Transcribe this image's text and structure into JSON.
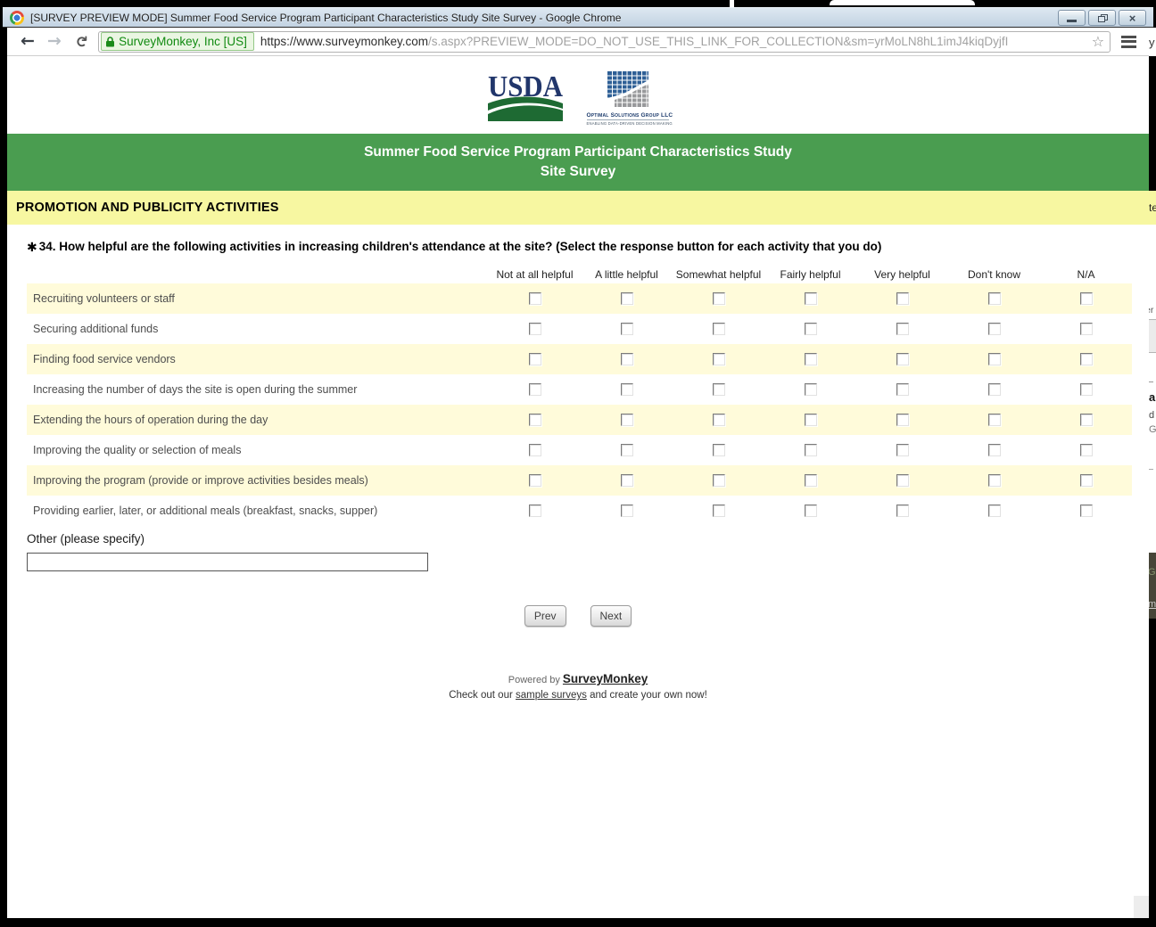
{
  "window": {
    "title": "[SURVEY PREVIEW MODE] Summer Food Service Program Participant Characteristics Study Site Survey - Google Chrome"
  },
  "toolbar": {
    "security_badge": "SurveyMonkey, Inc [US]",
    "url_domain": "https://www.surveymonkey.com",
    "url_path": "/s.aspx?PREVIEW_MODE=DO_NOT_USE_THIS_LINK_FOR_COLLECTION&sm=yrMoLN8hL1imJ4kiqDyjfI"
  },
  "logos": {
    "usda": "USDA",
    "osg_name": "Optimal Solutions Group LLC",
    "osg_tagline": "ENABLING DATA-DRIVEN DECISION MAKING"
  },
  "banner": {
    "line1": "Summer Food Service Program Participant Characteristics Study",
    "line2": "Site Survey"
  },
  "section_title": "PROMOTION AND PUBLICITY ACTIVITIES",
  "question": {
    "required_marker": "✱",
    "label": "34. How helpful are the following activities in increasing children's attendance at the site? (Select the response button for each activity that you do)",
    "columns": [
      "Not at all helpful",
      "A little helpful",
      "Somewhat helpful",
      "Fairly helpful",
      "Very helpful",
      "Don't know",
      "N/A"
    ],
    "rows": [
      "Recruiting volunteers or staff",
      "Securing additional funds",
      "Finding food service vendors",
      "Increasing the number of days the site is open during the summer",
      "Extending the hours of operation during the day",
      "Improving the quality or selection of meals",
      "Improving the program (provide or improve activities besides meals)",
      "Providing earlier, later, or additional meals (breakfast, snacks, supper)"
    ],
    "other_label": "Other (please specify)",
    "other_value": ""
  },
  "nav": {
    "prev": "Prev",
    "next": "Next"
  },
  "footer": {
    "powered_by": "Powered by ",
    "brand": "SurveyMonkey",
    "line2_pre": "Check out our ",
    "line2_link": "sample surveys",
    "line2_post": " and create your own now!"
  },
  "edge": {
    "toolbar_fragment": "y",
    "section_fragment": "te",
    "f1": "er",
    "f2": "a",
    "f3": "d",
    "f4": "G",
    "f5": "G",
    "f6": "m"
  },
  "colors": {
    "banner_green": "#4A9D50",
    "section_yellow": "#F7F7A1",
    "row_yellow": "#FFFBDA",
    "badge_green": "#118A11"
  }
}
